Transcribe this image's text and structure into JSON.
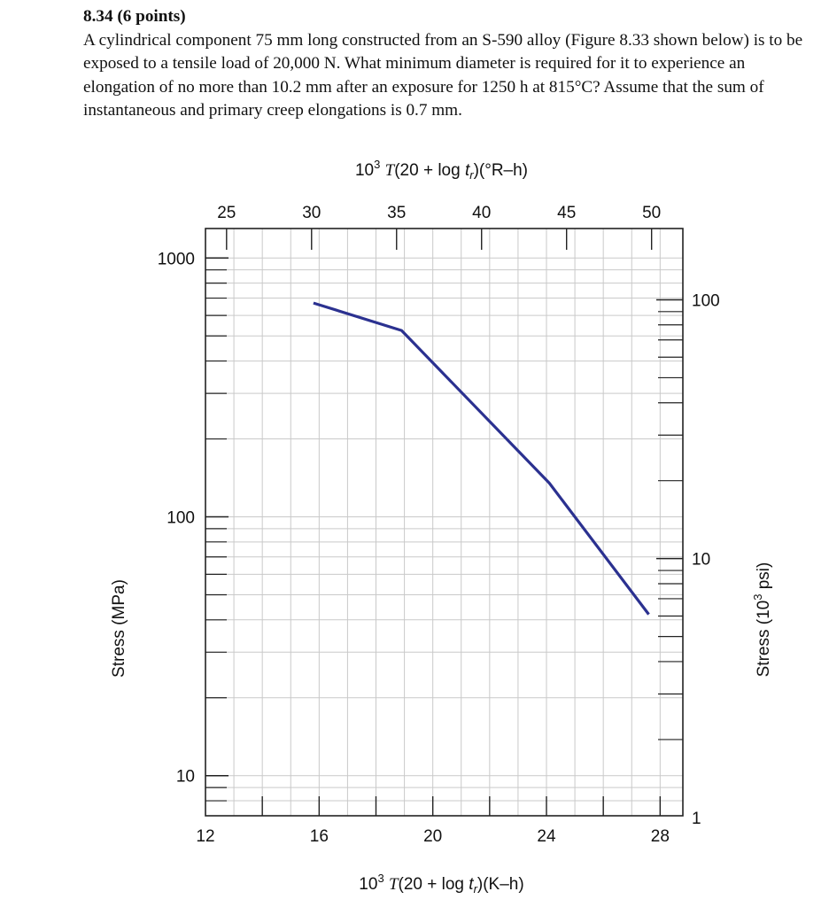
{
  "problem": {
    "title": "8.34 (6 points)",
    "body": "A cylindrical component 75 mm long constructed from an S-590 alloy (Figure 8.33 shown below) is to be exposed to a tensile load of 20,000 N.  What minimum diameter is required for it to experience an elongation of no more than 10.2 mm after an exposure for 1250 h at 815°C? Assume that the sum of instantaneous and primary creep elongations is 0.7 mm."
  },
  "chart_data": {
    "type": "line",
    "title": "",
    "top_axis": {
      "label_prefix": "10",
      "label_exp": "3",
      "label_T": "T",
      "label_rest": "(20 + log ",
      "label_t": "t",
      "label_sub": "r",
      "label_end": ")(°R–h)",
      "range": [
        23.76,
        51.84
      ],
      "ticks": [
        "25",
        "30",
        "35",
        "40",
        "45",
        "50"
      ]
    },
    "bottom_axis": {
      "label_prefix": "10",
      "label_exp": "3",
      "label_T": "T",
      "label_rest": "(20 + log ",
      "label_t": "t",
      "label_sub": "r",
      "label_end": ")(K–h)",
      "range": [
        12,
        28.8
      ],
      "ticks": [
        "12",
        "16",
        "20",
        "24",
        "28"
      ]
    },
    "left_axis": {
      "label": "Stress (MPa)",
      "scale": "log",
      "range": [
        7,
        1300
      ],
      "ticks": [
        "10",
        "100",
        "1000"
      ]
    },
    "right_axis": {
      "label_prefix": "Stress (10",
      "label_exp": "3",
      "label_end": " psi)",
      "scale": "log",
      "range": [
        1.015,
        188.5
      ],
      "ticks": [
        "1",
        "10",
        "100"
      ]
    },
    "grid": true,
    "line_color": "#2B3190",
    "series": [
      {
        "x": [
          15.8,
          18.9,
          24.1,
          27.6
        ],
        "y": [
          670,
          525,
          135,
          42
        ]
      }
    ]
  }
}
